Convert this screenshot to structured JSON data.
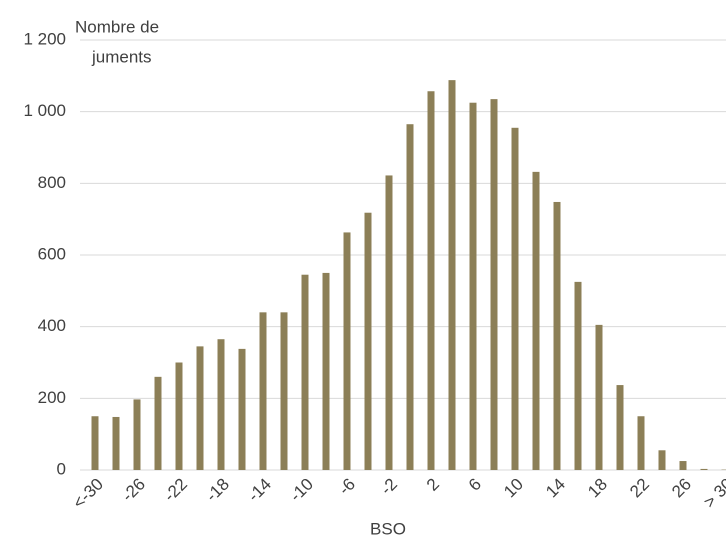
{
  "chart_data": {
    "type": "bar",
    "y_label_lines": [
      "Nombre de",
      "juments"
    ],
    "x_label": "BSO",
    "categories": [
      "<-30",
      null,
      "-26",
      null,
      "-22",
      null,
      "-18",
      null,
      "-14",
      null,
      "-10",
      null,
      "-6",
      null,
      "-2",
      null,
      "2",
      null,
      "6",
      null,
      "10",
      null,
      "14",
      null,
      "18",
      null,
      "22",
      null,
      "26",
      null,
      "> 30"
    ],
    "values": [
      150,
      148,
      197,
      260,
      300,
      345,
      365,
      338,
      440,
      440,
      545,
      550,
      663,
      718,
      822,
      965,
      1057,
      1088,
      1025,
      1035,
      955,
      832,
      748,
      525,
      405,
      237,
      150,
      55,
      25,
      3,
      1
    ],
    "color": "#8c7f57",
    "ylim": [
      0,
      1200
    ],
    "yticks": [
      0,
      200,
      400,
      600,
      800,
      {
        "value": 1000,
        "label": "1 000"
      },
      {
        "value": 1200,
        "label": "1 200"
      }
    ],
    "grid": true
  }
}
